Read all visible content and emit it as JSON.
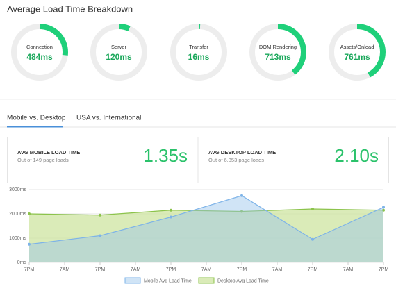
{
  "header": {
    "title": "Average Load Time Breakdown"
  },
  "gauges": {
    "range": [
      0,
      1800
    ],
    "color": "#1fd07a",
    "items": [
      {
        "label": "Connection",
        "value": 484,
        "value_label": "484ms"
      },
      {
        "label": "Server",
        "value": 120,
        "value_label": "120ms"
      },
      {
        "label": "Transfer",
        "value": 16,
        "value_label": "16ms"
      },
      {
        "label": "DOM Rendering",
        "value": 713,
        "value_label": "713ms"
      },
      {
        "label": "Assets/Onload",
        "value": 761,
        "value_label": "761ms"
      }
    ]
  },
  "tabs": [
    "Mobile vs. Desktop",
    "USA vs. International"
  ],
  "stats": [
    {
      "title": "AVG MOBILE LOAD TIME",
      "subtitle": "Out of 149 page loads",
      "value": "1.35s"
    },
    {
      "title": "AVG DESKTOP LOAD TIME",
      "subtitle": "Out of 6,353 page loads",
      "value": "2.10s"
    }
  ],
  "chart_data": {
    "type": "area",
    "x": [
      0,
      24,
      48,
      72,
      96,
      120
    ],
    "xlim": [
      0,
      120
    ],
    "xticks": [
      {
        "value": 0,
        "label": "7PM"
      },
      {
        "value": 12,
        "label": "7AM"
      },
      {
        "value": 24,
        "label": "7PM"
      },
      {
        "value": 36,
        "label": "7AM"
      },
      {
        "value": 48,
        "label": "7PM"
      },
      {
        "value": 60,
        "label": "7AM"
      },
      {
        "value": 72,
        "label": "7PM"
      },
      {
        "value": 84,
        "label": "7AM"
      },
      {
        "value": 96,
        "label": "7PM"
      },
      {
        "value": 108,
        "label": "7AM"
      },
      {
        "value": 120,
        "label": "7PM"
      }
    ],
    "ylim": [
      0,
      3000
    ],
    "yticks": [
      {
        "value": 0,
        "label": "0ms"
      },
      {
        "value": 1000,
        "label": "1000ms"
      },
      {
        "value": 2000,
        "label": "2000ms"
      },
      {
        "value": 3000,
        "label": "3000ms"
      }
    ],
    "grid": true,
    "series": [
      {
        "name": "Desktop Avg Load Time",
        "color": "#8cc34b",
        "values": [
          2000,
          1950,
          2150,
          2100,
          2200,
          2150
        ]
      },
      {
        "name": "Mobile Avg Load Time",
        "color": "#7db3e8",
        "values": [
          750,
          1100,
          1870,
          2750,
          950,
          2270
        ]
      }
    ]
  }
}
